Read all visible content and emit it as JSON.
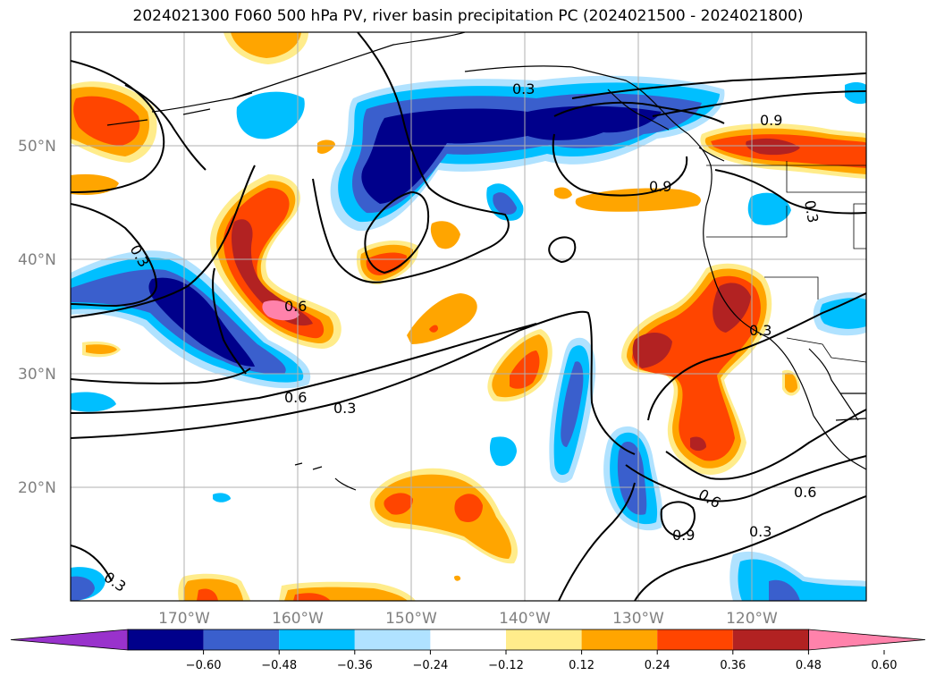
{
  "title": "2024021300 F060 500 hPa PV, river basin precipitation PC (2024021500 - 2024021800)",
  "map": {
    "lat_labels": [
      "50°N",
      "40°N",
      "30°N",
      "20°N"
    ],
    "lon_labels": [
      "170°W",
      "160°W",
      "150°W",
      "140°W",
      "130°W",
      "120°W"
    ],
    "contour_labels": [
      "0.3",
      "0.9",
      "0.9",
      "0.3",
      "0.6",
      "0.3",
      "0.3",
      "0.6",
      "0.3",
      "0.6",
      "0.9",
      "0.3",
      "0.6",
      "0.3"
    ]
  },
  "colorbar": {
    "colors": [
      "#9932cc",
      "#00008b",
      "#3a5fcd",
      "#00bfff",
      "#b0e2ff",
      "#ffffff",
      "#ffec8b",
      "#ffa500",
      "#ff4500",
      "#b22222",
      "#ff82ab"
    ],
    "labels": [
      "−0.60",
      "−0.48",
      "−0.36",
      "−0.24",
      "−0.12",
      "0.12",
      "0.24",
      "0.36",
      "0.48",
      "0.60"
    ]
  }
}
